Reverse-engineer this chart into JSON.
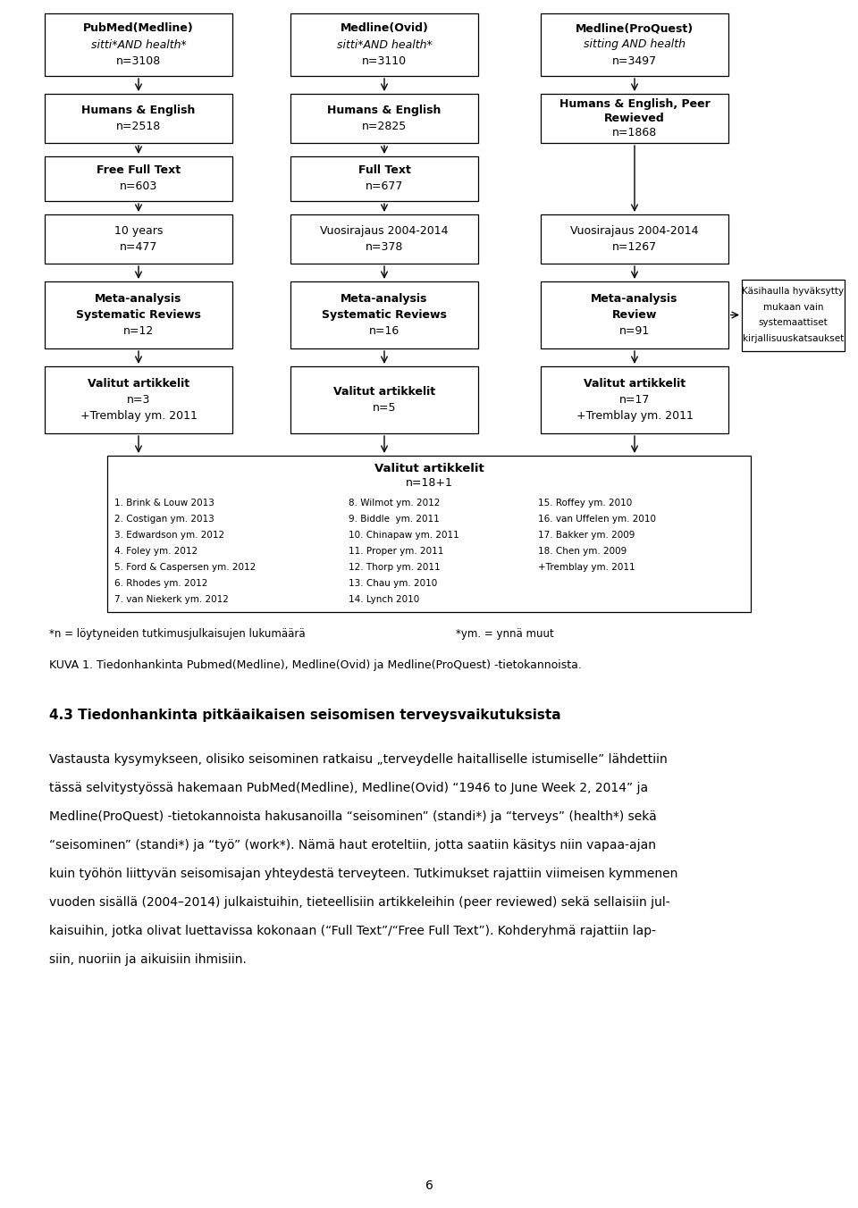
{
  "bg_color": "#ffffff",
  "page_number": "6",
  "footnote_left": "*n = löytyneiden tutkimusjulkaisujen lukumäärä",
  "footnote_right": "*ym. = ynnä muut",
  "kuva_text": "KUVA 1. Tiedonhankinta Pubmed(Medline), Medline(Ovid) ja Medline(ProQuest) -tietokannoista.",
  "section_title": "4.3 Tiedonhankinta pitkäaikaisen seisomisen terveysvaikutuksista",
  "body_lines": [
    "Vastausta kysymykseen, olisiko seisominen ratkaisu „terveydelle haitalliselle istumiselle” lähdettiin",
    "tässä selvitystyössä hakemaan PubMed(Medline), Medline(Ovid) “1946 to June Week 2, 2014” ja",
    "Medline(ProQuest) -tietokannoista hakusanoilla “seisominen” (standi*) ja “terveys” (health*) sekä",
    "“seisominen” (standi*) ja “työ” (work*). Nämä haut eroteltiin, jotta saatiin käsitys niin vapaa-ajan",
    "kuin työhön liittyvän seisomisajan yhteydestä terveyteen. Tutkimukset rajattiin viimeisen kymmenen",
    "vuoden sisällä (2004–2014) julkaistuihin, tieteellisiin artikkeleihin (peer reviewed) sekä sellaisiin jul-",
    "kaisuihin, jotka olivat luettavissa kokonaan (“Full Text”/“Free Full Text”). Kohderyhmä rajattiin lap-",
    "siin, nuoriin ja aikuisiin ihmisiin."
  ],
  "boxes": [
    {
      "col": 0,
      "row": 0,
      "lines": [
        "PubMed(Medline)",
        "sitti*AND health*",
        "n=3108"
      ],
      "bold": [
        true,
        false,
        false
      ],
      "italic": [
        false,
        true,
        false
      ]
    },
    {
      "col": 1,
      "row": 0,
      "lines": [
        "Medline(Ovid)",
        "sitti*AND health*",
        "n=3110"
      ],
      "bold": [
        true,
        false,
        false
      ],
      "italic": [
        false,
        true,
        false
      ]
    },
    {
      "col": 2,
      "row": 0,
      "lines": [
        "Medline(ProQuest)",
        "sitting AND health",
        "n=3497"
      ],
      "bold": [
        true,
        false,
        false
      ],
      "italic": [
        false,
        true,
        false
      ]
    },
    {
      "col": 0,
      "row": 1,
      "lines": [
        "Humans & English",
        "n=2518"
      ],
      "bold": [
        true,
        false
      ],
      "italic": [
        false,
        false
      ]
    },
    {
      "col": 1,
      "row": 1,
      "lines": [
        "Humans & English",
        "n=2825"
      ],
      "bold": [
        true,
        false
      ],
      "italic": [
        false,
        false
      ]
    },
    {
      "col": 2,
      "row": 1,
      "lines": [
        "Humans & English, Peer",
        "Rewieved",
        "n=1868"
      ],
      "bold": [
        true,
        true,
        false
      ],
      "italic": [
        false,
        false,
        false
      ]
    },
    {
      "col": 0,
      "row": 2,
      "lines": [
        "Free Full Text",
        "n=603"
      ],
      "bold": [
        true,
        false
      ],
      "italic": [
        false,
        false
      ]
    },
    {
      "col": 1,
      "row": 2,
      "lines": [
        "Full Text",
        "n=677"
      ],
      "bold": [
        true,
        false
      ],
      "italic": [
        false,
        false
      ]
    },
    {
      "col": 0,
      "row": 3,
      "lines": [
        "10 years",
        "n=477"
      ],
      "bold": [
        false,
        false
      ],
      "italic": [
        false,
        false
      ]
    },
    {
      "col": 1,
      "row": 3,
      "lines": [
        "Vuosirajaus 2004-2014",
        "n=378"
      ],
      "bold": [
        false,
        false
      ],
      "italic": [
        false,
        false
      ]
    },
    {
      "col": 2,
      "row": 3,
      "lines": [
        "Vuosirajaus 2004-2014",
        "n=1267"
      ],
      "bold": [
        false,
        false
      ],
      "italic": [
        false,
        false
      ]
    },
    {
      "col": 0,
      "row": 4,
      "lines": [
        "Meta-analysis",
        "Systematic Reviews",
        "n=12"
      ],
      "bold": [
        true,
        true,
        false
      ],
      "italic": [
        false,
        false,
        false
      ]
    },
    {
      "col": 1,
      "row": 4,
      "lines": [
        "Meta-analysis",
        "Systematic Reviews",
        "n=16"
      ],
      "bold": [
        true,
        true,
        false
      ],
      "italic": [
        false,
        false,
        false
      ]
    },
    {
      "col": 2,
      "row": 4,
      "lines": [
        "Meta-analysis",
        "Review",
        "n=91"
      ],
      "bold": [
        true,
        true,
        false
      ],
      "italic": [
        false,
        false,
        false
      ]
    },
    {
      "col": 0,
      "row": 5,
      "lines": [
        "Valitut artikkelit",
        "n=3",
        "+Tremblay ym. 2011"
      ],
      "bold": [
        true,
        false,
        false
      ],
      "italic": [
        false,
        false,
        false
      ]
    },
    {
      "col": 1,
      "row": 5,
      "lines": [
        "Valitut artikkelit",
        "n=5"
      ],
      "bold": [
        true,
        false
      ],
      "italic": [
        false,
        false
      ]
    },
    {
      "col": 2,
      "row": 5,
      "lines": [
        "Valitut artikkelit",
        "n=17",
        "+Tremblay ym. 2011"
      ],
      "bold": [
        true,
        false,
        false
      ],
      "italic": [
        false,
        false,
        false
      ]
    }
  ],
  "side_box_lines": [
    "Käsihaulla hyväksytty",
    "mukaan vain",
    "systemaattiset",
    "kirjallisuuskatsaukset"
  ],
  "final_box_title": "Valitut artikkelit",
  "final_box_subtitle": "n=18+1",
  "final_col1": [
    "1. Brink & Louw 2013",
    "2. Costigan ym. 2013",
    "3. Edwardson ym. 2012",
    "4. Foley ym. 2012",
    "5. Ford & Caspersen ym. 2012",
    "6. Rhodes ym. 2012",
    "7. van Niekerk ym. 2012"
  ],
  "final_col2": [
    "8. Wilmot ym. 2012",
    "9. Biddle  ym. 2011",
    "10. Chinapaw ym. 2011",
    "11. Proper ym. 2011",
    "12. Thorp ym. 2011",
    "13. Chau ym. 2010",
    "14. Lynch 2010"
  ],
  "final_col3": [
    "15. Roffey ym. 2010",
    "16. van Uffelen ym. 2010",
    "17. Bakker ym. 2009",
    "18. Chen ym. 2009",
    "+Tremblay ym. 2011"
  ]
}
